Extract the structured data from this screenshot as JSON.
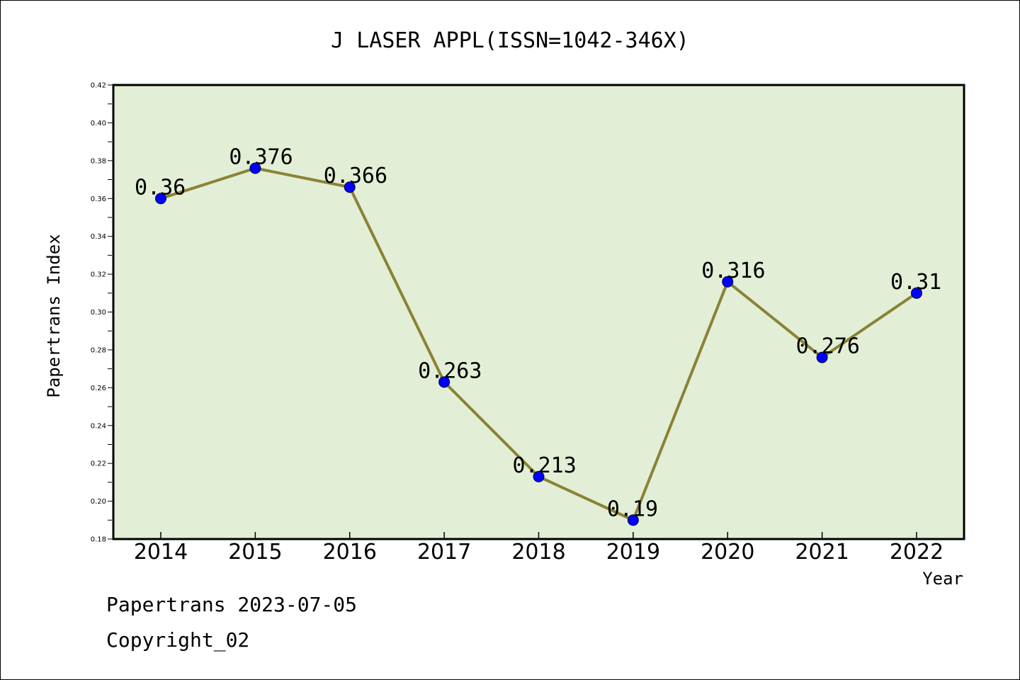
{
  "chart_data": {
    "type": "line",
    "title": "J LASER APPL(ISSN=1042-346X)",
    "xlabel": "Year",
    "ylabel": "Papertrans Index",
    "categories": [
      "2014",
      "2015",
      "2016",
      "2017",
      "2018",
      "2019",
      "2020",
      "2021",
      "2022"
    ],
    "values": [
      0.36,
      0.376,
      0.366,
      0.263,
      0.213,
      0.19,
      0.316,
      0.276,
      0.31
    ],
    "data_labels": [
      "0.36",
      "0.376",
      "0.366",
      "0.263",
      "0.213",
      "0.19",
      "0.316",
      "0.276",
      "0.31"
    ],
    "ylim": [
      0.18,
      0.42
    ],
    "yticks": [
      "0.18",
      "0.20",
      "0.22",
      "0.24",
      "0.26",
      "0.28",
      "0.30",
      "0.32",
      "0.34",
      "0.36",
      "0.38",
      "0.40",
      "0.42"
    ],
    "grid": false,
    "legend": "none",
    "colors": {
      "plot_background": "#e2efd6",
      "line": "#8b8236",
      "marker": "#0000ff"
    }
  },
  "footer": {
    "line1": "Papertrans 2023-07-05",
    "line2": "Copyright_02"
  }
}
